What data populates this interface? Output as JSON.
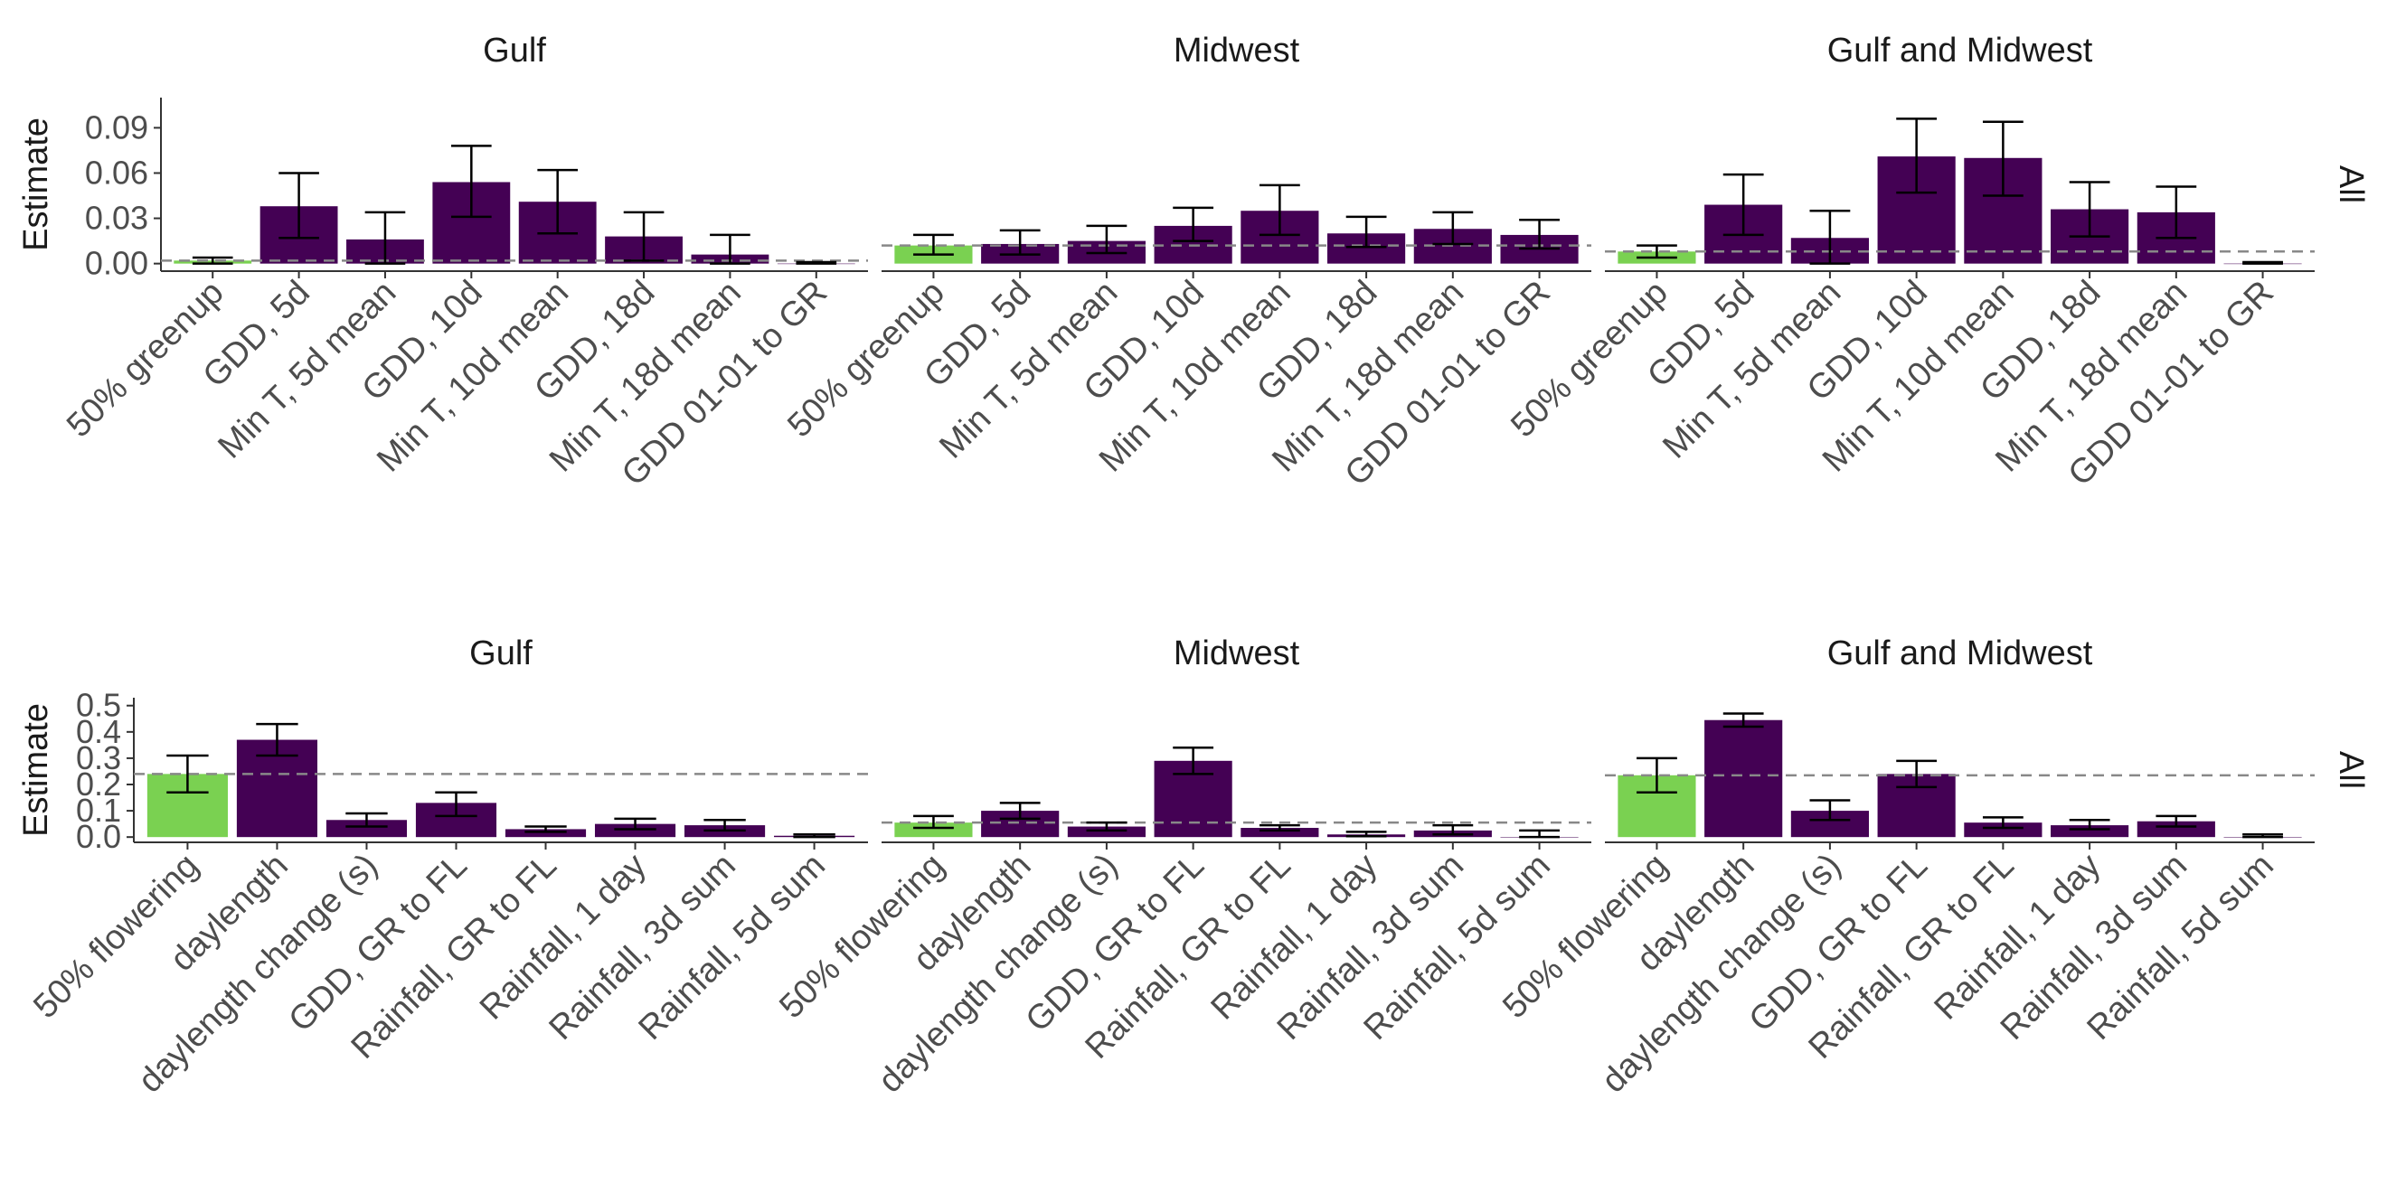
{
  "chart_data": [
    {
      "type": "bar",
      "row": "top",
      "ylabel": "Estimate",
      "strip_label": "All",
      "ylim": [
        -0.005,
        0.11
      ],
      "yticks": [
        0.0,
        0.03,
        0.06,
        0.09
      ],
      "ytick_labels": [
        "0.00",
        "0.03",
        "0.06",
        "0.09"
      ],
      "colors": {
        "highlight": "#7AD151",
        "bar": "#440154",
        "baseline": "#888888"
      },
      "panels": [
        {
          "title": "Gulf",
          "categories": [
            "50% greenup",
            "GDD, 5d",
            "Min T, 5d mean",
            "GDD, 10d",
            "Min T, 10d mean",
            "GDD, 18d",
            "Min T, 18d mean",
            "GDD 01-01 to GR"
          ],
          "values": [
            0.002,
            0.038,
            0.016,
            0.054,
            0.041,
            0.018,
            0.006,
            0.0
          ],
          "err_low": [
            0.0,
            0.017,
            0.0,
            0.031,
            0.02,
            0.002,
            0.0,
            0.0
          ],
          "err_high": [
            0.004,
            0.06,
            0.034,
            0.078,
            0.062,
            0.034,
            0.019,
            0.001
          ],
          "baseline": 0.002
        },
        {
          "title": "Midwest",
          "categories": [
            "50% greenup",
            "GDD, 5d",
            "Min T, 5d mean",
            "GDD, 10d",
            "Min T, 10d mean",
            "GDD, 18d",
            "Min T, 18d mean",
            "GDD 01-01 to GR"
          ],
          "values": [
            0.012,
            0.013,
            0.015,
            0.025,
            0.035,
            0.02,
            0.023,
            0.019
          ],
          "err_low": [
            0.006,
            0.006,
            0.007,
            0.015,
            0.019,
            0.011,
            0.013,
            0.01
          ],
          "err_high": [
            0.019,
            0.022,
            0.025,
            0.037,
            0.052,
            0.031,
            0.034,
            0.029
          ],
          "baseline": 0.012
        },
        {
          "title": "Gulf and Midwest",
          "categories": [
            "50% greenup",
            "GDD, 5d",
            "Min T, 5d mean",
            "GDD, 10d",
            "Min T, 10d mean",
            "GDD, 18d",
            "Min T, 18d mean",
            "GDD 01-01 to GR"
          ],
          "values": [
            0.008,
            0.039,
            0.017,
            0.071,
            0.07,
            0.036,
            0.034,
            0.0
          ],
          "err_low": [
            0.004,
            0.019,
            0.0,
            0.047,
            0.045,
            0.018,
            0.017,
            0.0
          ],
          "err_high": [
            0.012,
            0.059,
            0.035,
            0.096,
            0.094,
            0.054,
            0.051,
            0.001
          ],
          "baseline": 0.008
        }
      ]
    },
    {
      "type": "bar",
      "row": "bottom",
      "ylabel": "Estimate",
      "strip_label": "All",
      "ylim": [
        -0.02,
        0.53
      ],
      "yticks": [
        0.0,
        0.1,
        0.2,
        0.3,
        0.4,
        0.5
      ],
      "ytick_labels": [
        "0.0",
        "0.1",
        "0.2",
        "0.3",
        "0.4",
        "0.5"
      ],
      "colors": {
        "highlight": "#7AD151",
        "bar": "#440154",
        "baseline": "#888888"
      },
      "panels": [
        {
          "title": "Gulf",
          "categories": [
            "50% flowering",
            "daylength",
            "daylength change (s)",
            "GDD, GR to FL",
            "Rainfall, GR to FL",
            "Rainfall, 1 day",
            "Rainfall, 3d sum",
            "Rainfall, 5d sum"
          ],
          "values": [
            0.24,
            0.37,
            0.065,
            0.13,
            0.03,
            0.05,
            0.045,
            0.005
          ],
          "err_low": [
            0.17,
            0.31,
            0.04,
            0.08,
            0.02,
            0.03,
            0.025,
            0.0
          ],
          "err_high": [
            0.31,
            0.43,
            0.09,
            0.17,
            0.04,
            0.07,
            0.065,
            0.01
          ],
          "baseline": 0.24
        },
        {
          "title": "Midwest",
          "categories": [
            "50% flowering",
            "daylength",
            "daylength change (s)",
            "GDD, GR to FL",
            "Rainfall, GR to FL",
            "Rainfall, 1 day",
            "Rainfall, 3d sum",
            "Rainfall, 5d sum"
          ],
          "values": [
            0.055,
            0.1,
            0.04,
            0.29,
            0.035,
            0.01,
            0.025,
            0.0
          ],
          "err_low": [
            0.035,
            0.07,
            0.025,
            0.24,
            0.025,
            0.003,
            0.01,
            0.0
          ],
          "err_high": [
            0.08,
            0.13,
            0.055,
            0.34,
            0.045,
            0.02,
            0.045,
            0.025
          ],
          "baseline": 0.055
        },
        {
          "title": "Gulf and Midwest",
          "categories": [
            "50% flowering",
            "daylength",
            "daylength change (s)",
            "GDD, GR to FL",
            "Rainfall, GR to FL",
            "Rainfall, 1 day",
            "Rainfall, 3d sum",
            "Rainfall, 5d sum"
          ],
          "values": [
            0.235,
            0.445,
            0.1,
            0.24,
            0.055,
            0.045,
            0.06,
            0.0
          ],
          "err_low": [
            0.17,
            0.42,
            0.065,
            0.19,
            0.035,
            0.03,
            0.04,
            0.0
          ],
          "err_high": [
            0.3,
            0.47,
            0.14,
            0.29,
            0.075,
            0.065,
            0.08,
            0.01
          ],
          "baseline": 0.235
        }
      ]
    }
  ]
}
